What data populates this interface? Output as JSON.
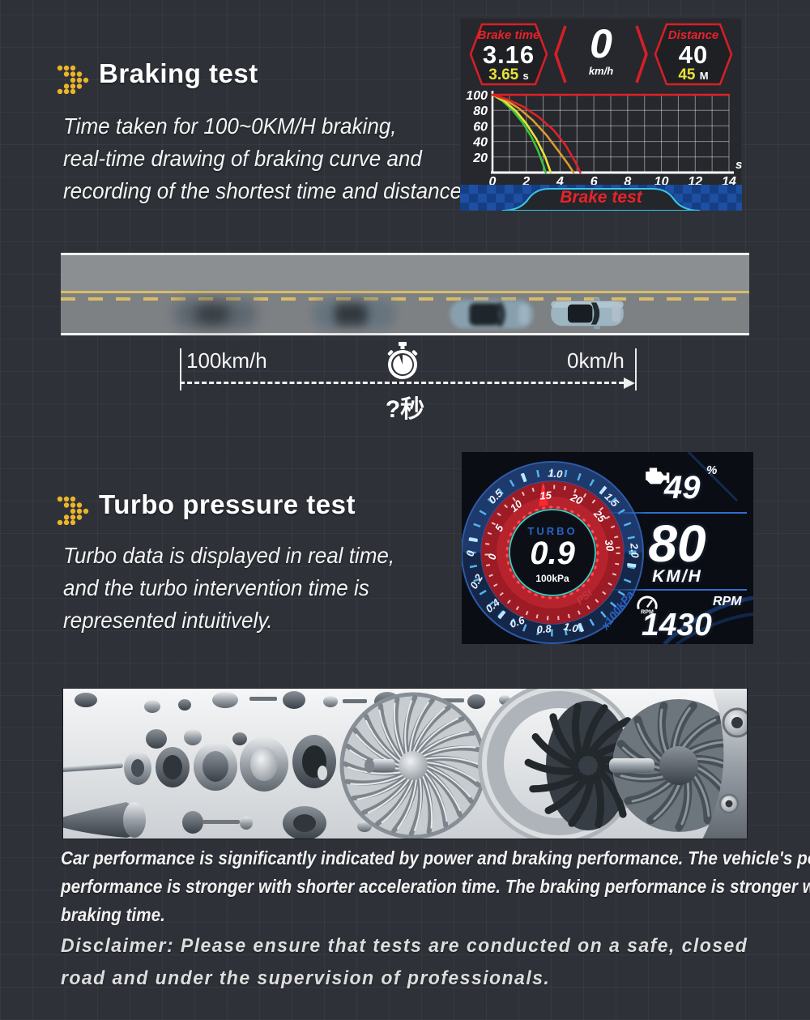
{
  "braking_section": {
    "heading": "Braking test",
    "description_lines": [
      "Time taken for 100~0KM/H braking,",
      "real-time drawing of braking curve and",
      "recording of the shortest time and distance."
    ]
  },
  "hud": {
    "brake_time": {
      "label": "Brake time",
      "value": "3.16",
      "best": "3.65",
      "best_unit": "s"
    },
    "speed": {
      "value": "0",
      "unit": "km/h"
    },
    "distance": {
      "label": "Distance",
      "value": "40",
      "best": "45",
      "best_unit": "M"
    },
    "banner_label": "Brake test"
  },
  "chart_data": {
    "type": "line",
    "title": "Brake test",
    "xlabel": "s",
    "ylabel": "",
    "xlim": [
      0,
      14
    ],
    "ylim": [
      0,
      100
    ],
    "x_ticks": [
      0,
      2,
      4,
      6,
      8,
      10,
      12,
      14
    ],
    "y_ticks": [
      20,
      40,
      60,
      80,
      100
    ],
    "grid": true,
    "legend": false,
    "series": [
      {
        "name": "speed-limit-line",
        "color": "#e02127",
        "points": [
          [
            0,
            100
          ],
          [
            14,
            100
          ]
        ]
      },
      {
        "name": "brake-run-green",
        "color": "#3bc23c",
        "points": [
          [
            0,
            100
          ],
          [
            0.6,
            92
          ],
          [
            1.2,
            80
          ],
          [
            1.8,
            64
          ],
          [
            2.3,
            46
          ],
          [
            2.7,
            28
          ],
          [
            3.0,
            10
          ],
          [
            3.15,
            0
          ]
        ]
      },
      {
        "name": "brake-run-yellow",
        "color": "#e6e23a",
        "points": [
          [
            0,
            100
          ],
          [
            0.7,
            92
          ],
          [
            1.4,
            79
          ],
          [
            2.0,
            63
          ],
          [
            2.6,
            43
          ],
          [
            3.1,
            21
          ],
          [
            3.45,
            0
          ]
        ]
      },
      {
        "name": "brake-run-orange",
        "color": "#dd9a2b",
        "points": [
          [
            0,
            100
          ],
          [
            0.8,
            93
          ],
          [
            1.6,
            82
          ],
          [
            2.4,
            67
          ],
          [
            3.2,
            48
          ],
          [
            3.9,
            28
          ],
          [
            4.5,
            10
          ],
          [
            4.8,
            0
          ]
        ]
      },
      {
        "name": "brake-run-red",
        "color": "#e02127",
        "points": [
          [
            0,
            100
          ],
          [
            0.9,
            94
          ],
          [
            1.8,
            85
          ],
          [
            2.7,
            72
          ],
          [
            3.6,
            55
          ],
          [
            4.3,
            36
          ],
          [
            4.9,
            14
          ],
          [
            5.2,
            0
          ]
        ]
      }
    ]
  },
  "road_test": {
    "start_speed": "100km/h",
    "end_speed": "0km/h",
    "elapsed_question": "?秒"
  },
  "turbo_section": {
    "heading": "Turbo pressure test",
    "description_lines": [
      "Turbo data is displayed in real time,",
      "and the turbo intervention time is",
      "represented intuitively."
    ]
  },
  "turbo_gauge": {
    "title": "TURBO",
    "value": "0.9",
    "unit": "100kPa",
    "psi_label": "PSI",
    "outer_unit_label": "x100kPa",
    "outer_scale": [
      "0",
      "0.2",
      "0.4",
      "0.6",
      "0.8",
      "1.0",
      "0.5",
      "1.0",
      "1.5",
      "2.0"
    ],
    "psi_scale": [
      "0",
      "5",
      "10",
      "15",
      "20",
      "25",
      "30"
    ],
    "throttle": {
      "value": "49",
      "unit": "%"
    },
    "speed": {
      "value": "80",
      "unit": "KM/H"
    },
    "rpm": {
      "value": "1430",
      "label": "RPM"
    }
  },
  "footer": {
    "performance_lines": [
      "Car performance is significantly indicated by power and braking performance. The vehicle's power",
      "performance is stronger with shorter acceleration time. The braking performance is stronger with shorter",
      "braking time."
    ],
    "disclaimer_lines": [
      "Disclaimer: Please ensure that tests are conducted on a safe, closed",
      "road and under the supervision of professionals."
    ]
  },
  "colors": {
    "accent_red": "#e02127",
    "accent_yellow": "#e6e23a",
    "accent_cyan": "#3ac8e8",
    "accent_blue": "#2f6fd0",
    "dot_arrow": "#ecb42c"
  }
}
